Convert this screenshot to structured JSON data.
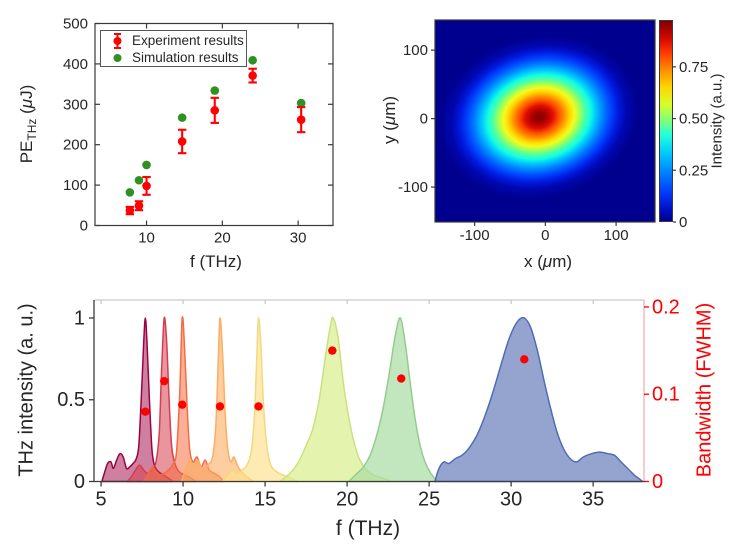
{
  "background": "#ffffff",
  "chart_data": [
    {
      "id": "pe_vs_f",
      "type": "scatter",
      "xlabel": "f (THz)",
      "ylabel": "PE_THz (μJ)",
      "ylabel_parts": {
        "main": "PE",
        "sub": "THz",
        "unit_open": " (",
        "unit_mu": "μ",
        "unit_close": "J)"
      },
      "xlim": [
        3.2,
        34.6
      ],
      "ylim": [
        0,
        500
      ],
      "xticks": [
        10,
        20,
        30
      ],
      "yticks": [
        0,
        100,
        200,
        300,
        400,
        500
      ],
      "grid": false,
      "legend_position": "top-left",
      "legend": [
        {
          "label": "Experiment results",
          "color": "#ff0000",
          "marker": "errorbar-dot"
        },
        {
          "label": "Simulation results",
          "color": "#2e9121",
          "marker": "dot"
        }
      ],
      "series": [
        {
          "name": "Experiment results",
          "color": "#ff0000",
          "x": [
            7.8,
            9.0,
            10.0,
            14.7,
            19.0,
            24.0,
            30.4
          ],
          "y": [
            37,
            49,
            98,
            208,
            285,
            371,
            262
          ],
          "yerr": [
            9,
            11,
            22,
            29,
            31,
            17,
            31
          ]
        },
        {
          "name": "Simulation results",
          "color": "#2e9121",
          "x": [
            7.8,
            9.0,
            10.0,
            14.7,
            19.0,
            24.0,
            30.4
          ],
          "y": [
            82,
            112,
            150,
            267,
            334,
            409,
            303
          ]
        }
      ]
    },
    {
      "id": "beam_profile",
      "type": "heatmap",
      "xlabel": "x (μm)",
      "ylabel": "y (μm)",
      "xlabel_parts": {
        "pre": "x (",
        "mu": "μ",
        "post": "m)"
      },
      "ylabel_parts": {
        "pre": "y (",
        "mu": "μ",
        "post": "m)"
      },
      "xlim": [
        -156,
        155
      ],
      "ylim": [
        -151,
        144
      ],
      "xticks": [
        -100,
        0,
        100
      ],
      "yticks": [
        -100,
        0,
        100
      ],
      "colormap": "jet",
      "colorbar": {
        "label": "Intensity (a.u.)",
        "range": [
          0,
          1
        ],
        "ticks": [
          0,
          0.25,
          0.5,
          0.75
        ],
        "tick_labels": [
          "0",
          "0.25",
          "0.50",
          "0.75"
        ]
      },
      "beam": {
        "center_x_um": -8,
        "center_y_um": 2,
        "semi_axis_x_um": 90,
        "semi_axis_y_um": 73,
        "tilt_deg": 14,
        "peak_intensity": 1.0
      }
    },
    {
      "id": "thz_spectra",
      "type": "area",
      "xlabel": "f (THz)",
      "ylabel_left": "THz intensity (a. u.)",
      "ylabel_right": "Bandwidth (FWHM)",
      "right_axis_color": "#ff0000",
      "xlim": [
        4.57,
        38.1
      ],
      "ylim_left": [
        0,
        1.11
      ],
      "ylim_right": [
        0,
        0.208
      ],
      "xticks": [
        5,
        10,
        15,
        20,
        25,
        30,
        35
      ],
      "yticks_left": [
        0,
        0.5,
        1
      ],
      "yticks_left_labels": [
        "0",
        "0.5",
        "1"
      ],
      "yticks_right": [
        0,
        0.1,
        0.2
      ],
      "yticks_right_labels": [
        "0",
        "0.1",
        "0.2"
      ],
      "spectra": [
        {
          "peak_thz": 7.7,
          "stroke": "#9e0142",
          "fill": "rgba(158,1,66,0.50)",
          "points": [
            [
              5.05,
              0
            ],
            [
              5.2,
              0.05
            ],
            [
              5.4,
              0.11
            ],
            [
              5.6,
              0.12
            ],
            [
              5.75,
              0.08
            ],
            [
              5.95,
              0.13
            ],
            [
              6.15,
              0.17
            ],
            [
              6.35,
              0.15
            ],
            [
              6.55,
              0.08
            ],
            [
              6.75,
              0.09
            ],
            [
              6.95,
              0.11
            ],
            [
              7.15,
              0.14
            ],
            [
              7.3,
              0.22
            ],
            [
              7.45,
              0.5
            ],
            [
              7.6,
              0.85
            ],
            [
              7.7,
              1.0
            ],
            [
              7.8,
              0.85
            ],
            [
              7.95,
              0.5
            ],
            [
              8.1,
              0.2
            ],
            [
              8.25,
              0.1
            ],
            [
              8.5,
              0.06
            ],
            [
              8.8,
              0.04
            ],
            [
              9.1,
              0.02
            ],
            [
              9.4,
              0
            ]
          ]
        },
        {
          "peak_thz": 8.85,
          "stroke": "#d53e4f",
          "fill": "rgba(213,62,79,0.55)",
          "points": [
            [
              6.6,
              0
            ],
            [
              6.85,
              0.03
            ],
            [
              7.1,
              0.07
            ],
            [
              7.35,
              0.1
            ],
            [
              7.6,
              0.07
            ],
            [
              7.85,
              0.05
            ],
            [
              8.1,
              0.07
            ],
            [
              8.35,
              0.12
            ],
            [
              8.55,
              0.3
            ],
            [
              8.7,
              0.7
            ],
            [
              8.85,
              1.0
            ],
            [
              9.0,
              0.85
            ],
            [
              9.15,
              0.5
            ],
            [
              9.3,
              0.22
            ],
            [
              9.5,
              0.11
            ],
            [
              9.75,
              0.06
            ],
            [
              10.1,
              0.04
            ],
            [
              10.5,
              0.02
            ],
            [
              10.8,
              0
            ]
          ]
        },
        {
          "peak_thz": 9.95,
          "stroke": "#f46d43",
          "fill": "rgba(244,109,67,0.55)",
          "points": [
            [
              7.6,
              0
            ],
            [
              7.85,
              0.04
            ],
            [
              8.1,
              0.09
            ],
            [
              8.35,
              0.06
            ],
            [
              8.6,
              0.04
            ],
            [
              8.85,
              0.05
            ],
            [
              9.1,
              0.07
            ],
            [
              9.35,
              0.1
            ],
            [
              9.6,
              0.18
            ],
            [
              9.8,
              0.55
            ],
            [
              9.95,
              1.0
            ],
            [
              10.1,
              0.8
            ],
            [
              10.25,
              0.45
            ],
            [
              10.4,
              0.2
            ],
            [
              10.6,
              0.12
            ],
            [
              10.85,
              0.15
            ],
            [
              11.1,
              0.09
            ],
            [
              11.35,
              0.13
            ],
            [
              11.6,
              0.07
            ],
            [
              11.9,
              0.05
            ],
            [
              12.2,
              0.03
            ],
            [
              12.5,
              0
            ]
          ]
        },
        {
          "peak_thz": 12.25,
          "stroke": "#fdae61",
          "fill": "rgba(253,174,97,0.60)",
          "points": [
            [
              9.9,
              0
            ],
            [
              10.15,
              0.07
            ],
            [
              10.4,
              0.14
            ],
            [
              10.65,
              0.09
            ],
            [
              10.9,
              0.13
            ],
            [
              11.2,
              0.07
            ],
            [
              11.5,
              0.1
            ],
            [
              11.8,
              0.15
            ],
            [
              12.0,
              0.35
            ],
            [
              12.15,
              0.75
            ],
            [
              12.25,
              1.0
            ],
            [
              12.4,
              0.8
            ],
            [
              12.55,
              0.45
            ],
            [
              12.7,
              0.22
            ],
            [
              12.9,
              0.12
            ],
            [
              13.1,
              0.15
            ],
            [
              13.35,
              0.09
            ],
            [
              13.65,
              0.05
            ],
            [
              14.0,
              0.02
            ],
            [
              14.3,
              0
            ]
          ]
        },
        {
          "peak_thz": 14.6,
          "stroke": "#f3d97e",
          "fill": "rgba(254,224,139,0.65)",
          "points": [
            [
              12.4,
              0
            ],
            [
              12.7,
              0.04
            ],
            [
              13.0,
              0.07
            ],
            [
              13.3,
              0.05
            ],
            [
              13.6,
              0.07
            ],
            [
              13.9,
              0.1
            ],
            [
              14.15,
              0.18
            ],
            [
              14.35,
              0.4
            ],
            [
              14.5,
              0.78
            ],
            [
              14.6,
              1.0
            ],
            [
              14.75,
              0.82
            ],
            [
              14.9,
              0.48
            ],
            [
              15.1,
              0.22
            ],
            [
              15.35,
              0.1
            ],
            [
              15.7,
              0.06
            ],
            [
              16.1,
              0.04
            ],
            [
              16.6,
              0.02
            ],
            [
              17.0,
              0
            ]
          ]
        },
        {
          "peak_thz": 19.1,
          "stroke": "#c9e27f",
          "fill": "rgba(217,239,139,0.70)",
          "points": [
            [
              15.9,
              0
            ],
            [
              16.3,
              0.03
            ],
            [
              16.7,
              0.07
            ],
            [
              17.1,
              0.13
            ],
            [
              17.5,
              0.22
            ],
            [
              17.9,
              0.32
            ],
            [
              18.3,
              0.5
            ],
            [
              18.7,
              0.78
            ],
            [
              19.0,
              0.96
            ],
            [
              19.15,
              1.0
            ],
            [
              19.45,
              0.88
            ],
            [
              19.75,
              0.62
            ],
            [
              20.05,
              0.42
            ],
            [
              20.35,
              0.27
            ],
            [
              20.7,
              0.15
            ],
            [
              21.1,
              0.08
            ],
            [
              21.6,
              0.04
            ],
            [
              22.2,
              0.02
            ],
            [
              22.7,
              0
            ]
          ]
        },
        {
          "peak_thz": 23.3,
          "stroke": "#93cd8c",
          "fill": "rgba(171,221,164,0.72)",
          "points": [
            [
              20.1,
              0
            ],
            [
              20.5,
              0.04
            ],
            [
              21.0,
              0.09
            ],
            [
              21.4,
              0.16
            ],
            [
              21.8,
              0.28
            ],
            [
              22.2,
              0.45
            ],
            [
              22.6,
              0.68
            ],
            [
              22.95,
              0.9
            ],
            [
              23.25,
              1.0
            ],
            [
              23.55,
              0.84
            ],
            [
              23.85,
              0.6
            ],
            [
              24.15,
              0.38
            ],
            [
              24.45,
              0.22
            ],
            [
              24.75,
              0.12
            ],
            [
              25.1,
              0.05
            ],
            [
              25.5,
              0
            ]
          ]
        },
        {
          "peak_thz": 30.8,
          "stroke": "#4f6db3",
          "fill": "rgba(113,133,191,0.75)",
          "points": [
            [
              25.35,
              0
            ],
            [
              25.6,
              0.08
            ],
            [
              25.9,
              0.12
            ],
            [
              26.2,
              0.11
            ],
            [
              26.6,
              0.14
            ],
            [
              27.0,
              0.16
            ],
            [
              27.4,
              0.2
            ],
            [
              27.9,
              0.28
            ],
            [
              28.4,
              0.4
            ],
            [
              28.9,
              0.55
            ],
            [
              29.4,
              0.72
            ],
            [
              29.9,
              0.88
            ],
            [
              30.4,
              0.98
            ],
            [
              30.8,
              1.0
            ],
            [
              31.2,
              0.94
            ],
            [
              31.6,
              0.8
            ],
            [
              32.0,
              0.62
            ],
            [
              32.4,
              0.45
            ],
            [
              32.8,
              0.3
            ],
            [
              33.2,
              0.2
            ],
            [
              33.6,
              0.14
            ],
            [
              34.0,
              0.12
            ],
            [
              34.4,
              0.15
            ],
            [
              34.9,
              0.17
            ],
            [
              35.4,
              0.18
            ],
            [
              35.9,
              0.17
            ],
            [
              36.3,
              0.16
            ],
            [
              36.7,
              0.12
            ],
            [
              37.1,
              0.08
            ],
            [
              37.5,
              0.04
            ],
            [
              37.9,
              0.01
            ],
            [
              38.0,
              0
            ]
          ]
        }
      ],
      "bandwidth_points": {
        "color": "#ff0000",
        "x": [
          7.7,
          8.85,
          9.95,
          12.25,
          14.6,
          19.1,
          23.3,
          30.8
        ],
        "y": [
          0.08,
          0.115,
          0.088,
          0.086,
          0.086,
          0.15,
          0.118,
          0.14
        ]
      }
    }
  ]
}
